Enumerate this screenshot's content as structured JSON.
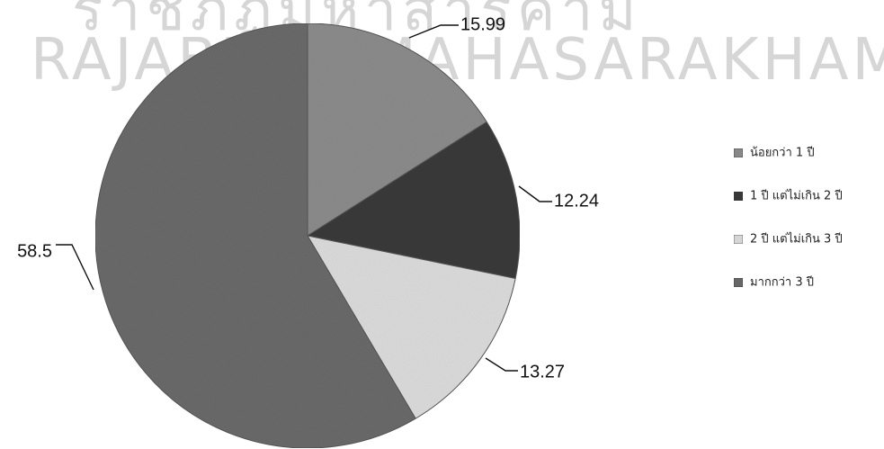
{
  "watermark": {
    "line1": "ราชภัฏมหาสารคาม",
    "line2": "RAJABHAT MAHASARAKHAM UNIVERSITY"
  },
  "chart_data": {
    "type": "pie",
    "title": "",
    "categories": [
      "น้อยกว่า 1 ปี",
      "1 ปี แต่ไม่เกิน 2 ปี",
      "2 ปี แต่ไม่เกิน 3 ปี",
      "มากกว่า 3 ปี"
    ],
    "values": [
      15.99,
      12.24,
      13.27,
      58.5
    ],
    "data_labels": [
      "15.99",
      "12.24",
      "13.27",
      "58.5"
    ],
    "colors": [
      "#8c8c8c",
      "#3a3a3a",
      "#dcdcdc",
      "#6a6a6a"
    ],
    "legend_position": "right",
    "start_angle_deg": 0,
    "direction": "clockwise"
  }
}
